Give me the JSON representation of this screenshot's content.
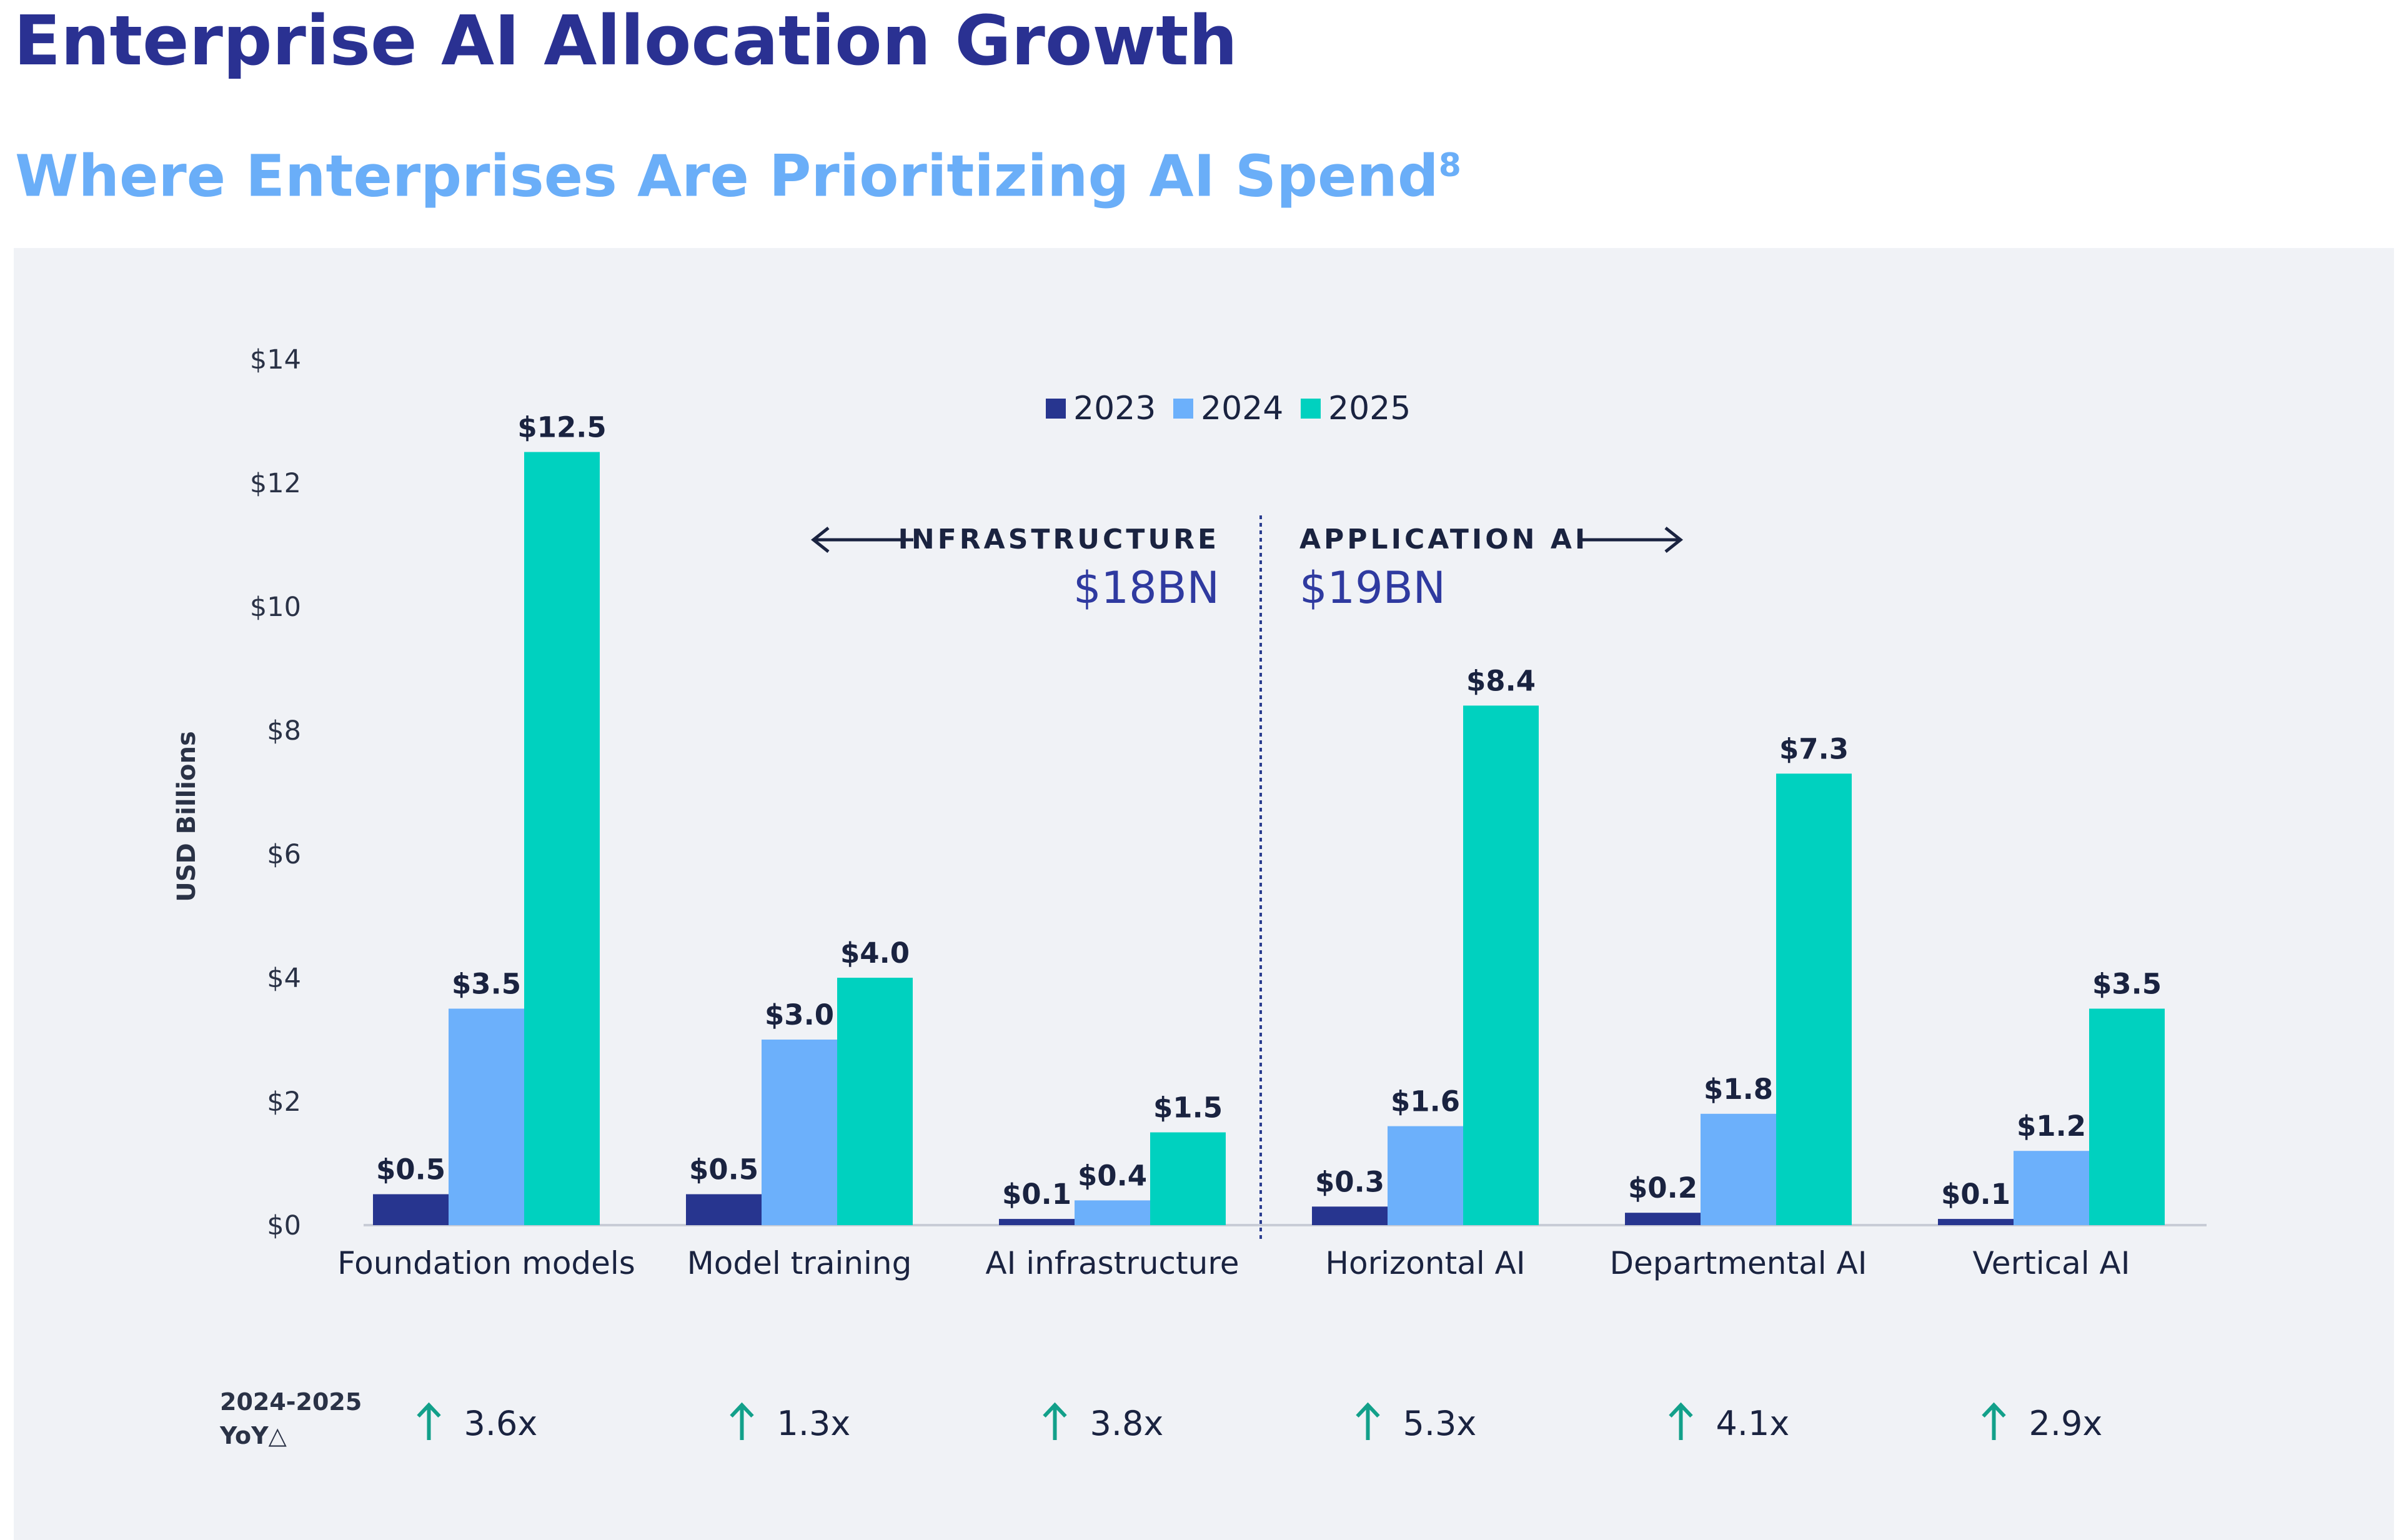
{
  "page": {
    "title": "Enterprise AI Allocation Growth",
    "subtitle": "Where Enterprises Are Prioritizing AI Spend",
    "subtitle_footnote": "8"
  },
  "chart_data": {
    "type": "bar",
    "ylabel": "USD Billions",
    "ylim": [
      0,
      14
    ],
    "yticks": [
      0,
      2,
      4,
      6,
      8,
      10,
      12,
      14
    ],
    "ytick_labels": [
      "$0",
      "$2",
      "$4",
      "$6",
      "$8",
      "$10",
      "$12",
      "$14"
    ],
    "categories": [
      "Foundation models",
      "Model training",
      "AI infrastructure",
      "Horizontal AI",
      "Departmental AI",
      "Vertical AI"
    ],
    "series": [
      {
        "name": "2023",
        "color": "#27358f",
        "values": [
          0.5,
          0.5,
          0.1,
          0.3,
          0.2,
          0.1
        ],
        "labels": [
          "$0.5",
          "$0.5",
          "$0.1",
          "$0.3",
          "$0.2",
          "$0.1"
        ]
      },
      {
        "name": "2024",
        "color": "#6cb0fb",
        "values": [
          3.5,
          3.0,
          0.4,
          1.6,
          1.8,
          1.2
        ],
        "labels": [
          "$3.5",
          "$3.0",
          "$0.4",
          "$1.6",
          "$1.8",
          "$1.2"
        ]
      },
      {
        "name": "2025",
        "color": "#00d1bf",
        "values": [
          12.5,
          4.0,
          1.5,
          8.4,
          7.3,
          3.5
        ],
        "labels": [
          "$12.5",
          "$4.0",
          "$1.5",
          "$8.4",
          "$7.3",
          "$3.5"
        ]
      }
    ],
    "legend_position": "top-center",
    "grid": false,
    "segments": [
      {
        "label": "INFRASTRUCTURE",
        "total": "$18BN"
      },
      {
        "label": "APPLICATION AI",
        "total": "$19BN"
      }
    ],
    "growth": {
      "label_line1": "2024-2025",
      "label_line2": "YoY△",
      "values": [
        "3.6x",
        "1.3x",
        "3.8x",
        "5.3x",
        "4.1x",
        "2.9x"
      ]
    },
    "colors": {
      "label_text": "#1a2340",
      "axis_text": "#2a3246",
      "segment_total": "#2f3aa0",
      "arrow_up": "#12a08a",
      "baseline": "#c8ccd6",
      "divider": "#2a3d8f"
    }
  }
}
